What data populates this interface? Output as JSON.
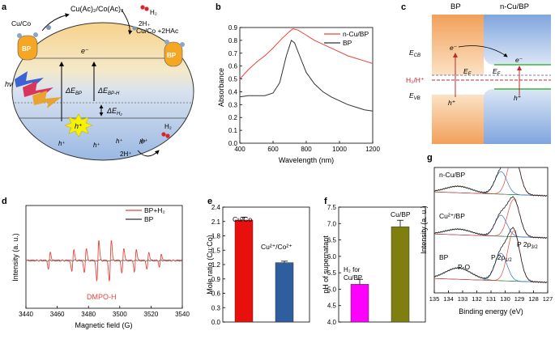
{
  "panel_letters": {
    "a": "a",
    "b": "b",
    "c": "c",
    "d": "d",
    "e": "e",
    "f": "f",
    "g": "g"
  },
  "panel_a": {
    "top_reactants": "Cu(Ac)₂/Co(Ac)₂",
    "h2_label": "H₂",
    "twoh_label": "2H₊",
    "cu_co_left": "Cu/Co",
    "cu_co_product": "Cu/Co +2HAc",
    "bp_label": "BP",
    "electron": "e⁻",
    "hole": "h⁺",
    "light": "hν",
    "delta_bp": "ΔE",
    "delta_bp_sub": "BP",
    "delta_bph": "ΔE",
    "delta_bph_sub": "BP-H",
    "delta_h2": "ΔE",
    "delta_h2_sub": "H₂",
    "h2_bottom": "H₂",
    "twoh_bottom": "2H⁺",
    "colors": {
      "band_top": "#f2c47a",
      "band_bottom": "#a9c3e8",
      "bp_particle": "#f5a623",
      "star": "#f7f200"
    }
  },
  "panel_b": {
    "ylabel": "Absorbance",
    "xlabel": "Wavelength (nm)",
    "legend": [
      "n-Cu/BP",
      "BP"
    ],
    "y_ticks": [
      "0.0",
      "0.1",
      "0.2",
      "0.3",
      "0.4",
      "0.5",
      "0.6",
      "0.7",
      "0.8",
      "0.9"
    ],
    "x_ticks": [
      "400",
      "600",
      "800",
      "1000",
      "1200"
    ]
  },
  "panel_c": {
    "bp": "BP",
    "ncubp": "n-Cu/BP",
    "ecb": "E",
    "ecb_sub": "CB",
    "evb": "E",
    "evb_sub": "VB",
    "ef": "E",
    "ef_sub": "F",
    "h2h": "H₂/H⁺",
    "electron": "e⁻",
    "hole": "h⁺"
  },
  "panel_d": {
    "ylabel": "Intensity (a. u.)",
    "xlabel": "Magnetic field (G)",
    "legend": [
      "BP+H₂",
      "BP"
    ],
    "annotation": "DMPO-H",
    "x_ticks": [
      "3440",
      "3460",
      "3480",
      "3500",
      "3520",
      "3540"
    ]
  },
  "panel_e": {
    "ylabel": "Mole ratio (Cu:Co)",
    "y_ticks": [
      "0.0",
      "0.3",
      "0.6",
      "0.9",
      "1.2",
      "1.5",
      "1.8",
      "2.1",
      "2.4"
    ],
    "bar_labels": [
      "Cu/Co",
      "Cu²⁺/Co²⁺"
    ]
  },
  "panel_f": {
    "ylabel": "pH of supernatant",
    "y_ticks": [
      "4.0",
      "4.5",
      "5.0",
      "5.5",
      "6.0",
      "6.5",
      "7.0",
      "7.5"
    ],
    "bar_label_1a": "H₂ for",
    "bar_label_1b": "Cu/BP",
    "bar_label_2": "Cu/BP"
  },
  "panel_g": {
    "ylabel": "Intensity (a. u.)",
    "xlabel": "Binding energy (eV)",
    "labels": [
      "n-Cu/BP",
      "Cu²⁺/BP",
      "BP"
    ],
    "po": "P-O",
    "p2p12": "P 2p",
    "p2p12_sub": "1/2",
    "p2p32": "P 2p",
    "p2p32_sub": "3/2",
    "x_ticks": [
      "135",
      "134",
      "133",
      "132",
      "131",
      "130",
      "129",
      "128",
      "127"
    ]
  },
  "chart_data": [
    {
      "panel": "b",
      "type": "line",
      "xlabel": "Wavelength (nm)",
      "ylabel": "Absorbance",
      "xlim": [
        400,
        1200
      ],
      "ylim": [
        0.0,
        0.9
      ],
      "series": [
        {
          "name": "n-Cu/BP",
          "color": "#e8453c",
          "x": [
            400,
            450,
            500,
            550,
            600,
            650,
            700,
            720,
            750,
            800,
            850,
            900,
            950,
            1000,
            1050,
            1100,
            1150,
            1200
          ],
          "y": [
            0.5,
            0.57,
            0.63,
            0.68,
            0.74,
            0.81,
            0.87,
            0.89,
            0.88,
            0.84,
            0.8,
            0.77,
            0.74,
            0.71,
            0.68,
            0.66,
            0.64,
            0.62
          ]
        },
        {
          "name": "BP",
          "color": "#333333",
          "x": [
            400,
            450,
            500,
            550,
            600,
            640,
            680,
            710,
            730,
            760,
            800,
            850,
            900,
            950,
            1000,
            1050,
            1100,
            1150,
            1200
          ],
          "y": [
            0.36,
            0.37,
            0.37,
            0.37,
            0.39,
            0.47,
            0.68,
            0.8,
            0.78,
            0.68,
            0.55,
            0.46,
            0.4,
            0.36,
            0.33,
            0.3,
            0.28,
            0.26,
            0.25
          ]
        }
      ]
    },
    {
      "panel": "e",
      "type": "bar",
      "ylabel": "Mole ratio (Cu:Co)",
      "ylim": [
        0.0,
        2.4
      ],
      "categories": [
        "Cu/Co",
        "Cu²⁺/Co²⁺"
      ],
      "values": [
        2.13,
        1.24
      ],
      "errors": [
        0.06,
        0.03
      ],
      "colors": [
        "#e8100c",
        "#2f5e9e"
      ]
    },
    {
      "panel": "f",
      "type": "bar",
      "ylabel": "pH of supernatant",
      "ylim": [
        4.0,
        7.5
      ],
      "categories": [
        "H₂ for Cu/BP",
        "Cu/BP"
      ],
      "values": [
        5.15,
        6.9
      ],
      "errors": [
        0.15,
        0.2
      ],
      "colors": [
        "#ff00ff",
        "#7f7f0f"
      ]
    }
  ]
}
